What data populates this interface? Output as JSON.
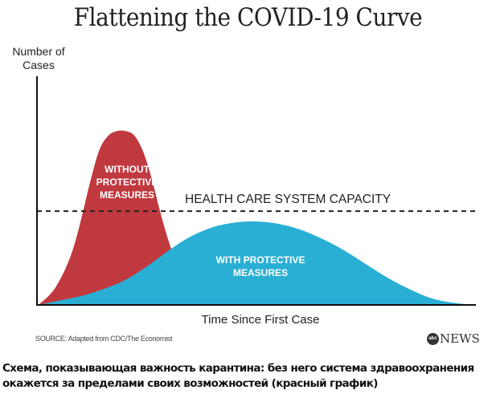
{
  "chart_data": {
    "type": "area",
    "title": "Flattening the COVID-19 Curve",
    "ylabel": "Number of Cases",
    "xlabel": "Time Since First Case",
    "xlim": [
      0,
      100
    ],
    "ylim": [
      0,
      100
    ],
    "grid": false,
    "capacity": {
      "label": "HEALTH CARE SYSTEM CAPACITY",
      "value": 41
    },
    "series": [
      {
        "name": "WITHOUT PROTECTIVE MEASURES",
        "label_lines": [
          "WITHOUT",
          "PROTECTIVE",
          "MEASURES"
        ],
        "color": "#c0393f",
        "x": [
          0,
          4,
          8,
          12,
          14,
          16,
          18,
          20,
          22,
          24,
          26,
          28,
          30,
          32,
          34,
          36,
          38
        ],
        "y": [
          0,
          8,
          25,
          55,
          68,
          74,
          76,
          76,
          74,
          67,
          55,
          40,
          27,
          16,
          8,
          3,
          0
        ]
      },
      {
        "name": "WITH PROTECTIVE MEASURES",
        "label_lines": [
          "WITH PROTECTIVE",
          "MEASURES"
        ],
        "color": "#2aafd4",
        "x": [
          0,
          5,
          10,
          15,
          20,
          25,
          30,
          35,
          40,
          45,
          50,
          55,
          60,
          65,
          70,
          75,
          80,
          85,
          90,
          95,
          100
        ],
        "y": [
          0,
          2,
          4,
          7,
          11,
          17,
          24,
          30,
          34,
          36,
          36.5,
          35.5,
          33,
          29,
          24,
          18,
          12,
          7,
          3,
          1,
          0
        ]
      }
    ],
    "source": "SOURCE: Adapted from CDC/The Economist"
  },
  "logo": {
    "mark": "abc",
    "text": "NEWS"
  },
  "caption": "Схема, показывающая важность карантина: без него система здравоохранения окажется за пределами своих возможностей (красный график)"
}
